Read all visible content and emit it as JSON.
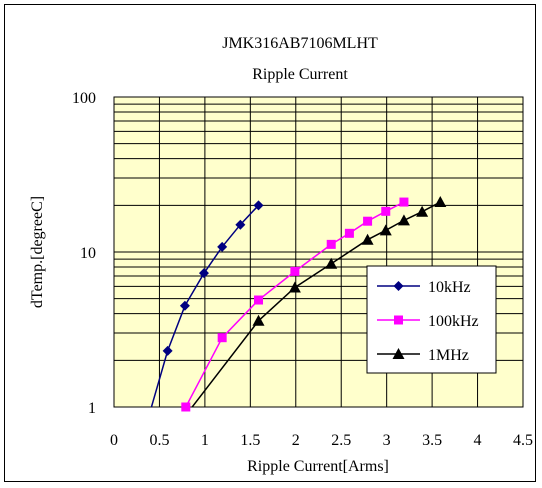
{
  "chart_data": {
    "type": "line",
    "title": "JMK316AB7106MLHT",
    "subtitle": "Ripple Current",
    "xlabel": "Ripple Current[Arms]",
    "ylabel": "dTemp.[degreeC]",
    "xlim": [
      0,
      4.5
    ],
    "ylim": [
      1,
      100
    ],
    "yscale": "log",
    "x_ticks": [
      "0",
      "0.5",
      "1",
      "1.5",
      "2",
      "2.5",
      "3",
      "3.5",
      "4",
      "4.5"
    ],
    "y_ticks": [
      "1",
      "10",
      "100"
    ],
    "grid": true,
    "plot_background": "#FFFFCC",
    "legend_position": "right-middle",
    "series": [
      {
        "name": "10kHz",
        "color": "#000080",
        "marker": "diamond",
        "x": [
          0.59,
          0.78,
          0.99,
          1.19,
          1.39,
          1.59
        ],
        "y": [
          2.3,
          4.5,
          7.3,
          10.8,
          15,
          20
        ]
      },
      {
        "name": "100kHz",
        "color": "#FF00FF",
        "marker": "square",
        "x": [
          0.79,
          1.19,
          1.59,
          1.99,
          2.39,
          2.59,
          2.79,
          2.99,
          3.19
        ],
        "y": [
          1.0,
          2.8,
          4.9,
          7.5,
          11.2,
          13.2,
          15.8,
          18.3,
          21
        ]
      },
      {
        "name": "1MHz",
        "color": "#000000",
        "marker": "triangle",
        "x": [
          1.59,
          1.99,
          2.39,
          2.79,
          2.99,
          3.19,
          3.39,
          3.59
        ],
        "y": [
          3.6,
          5.9,
          8.4,
          12.0,
          13.8,
          16.0,
          18.2,
          21
        ]
      }
    ]
  }
}
